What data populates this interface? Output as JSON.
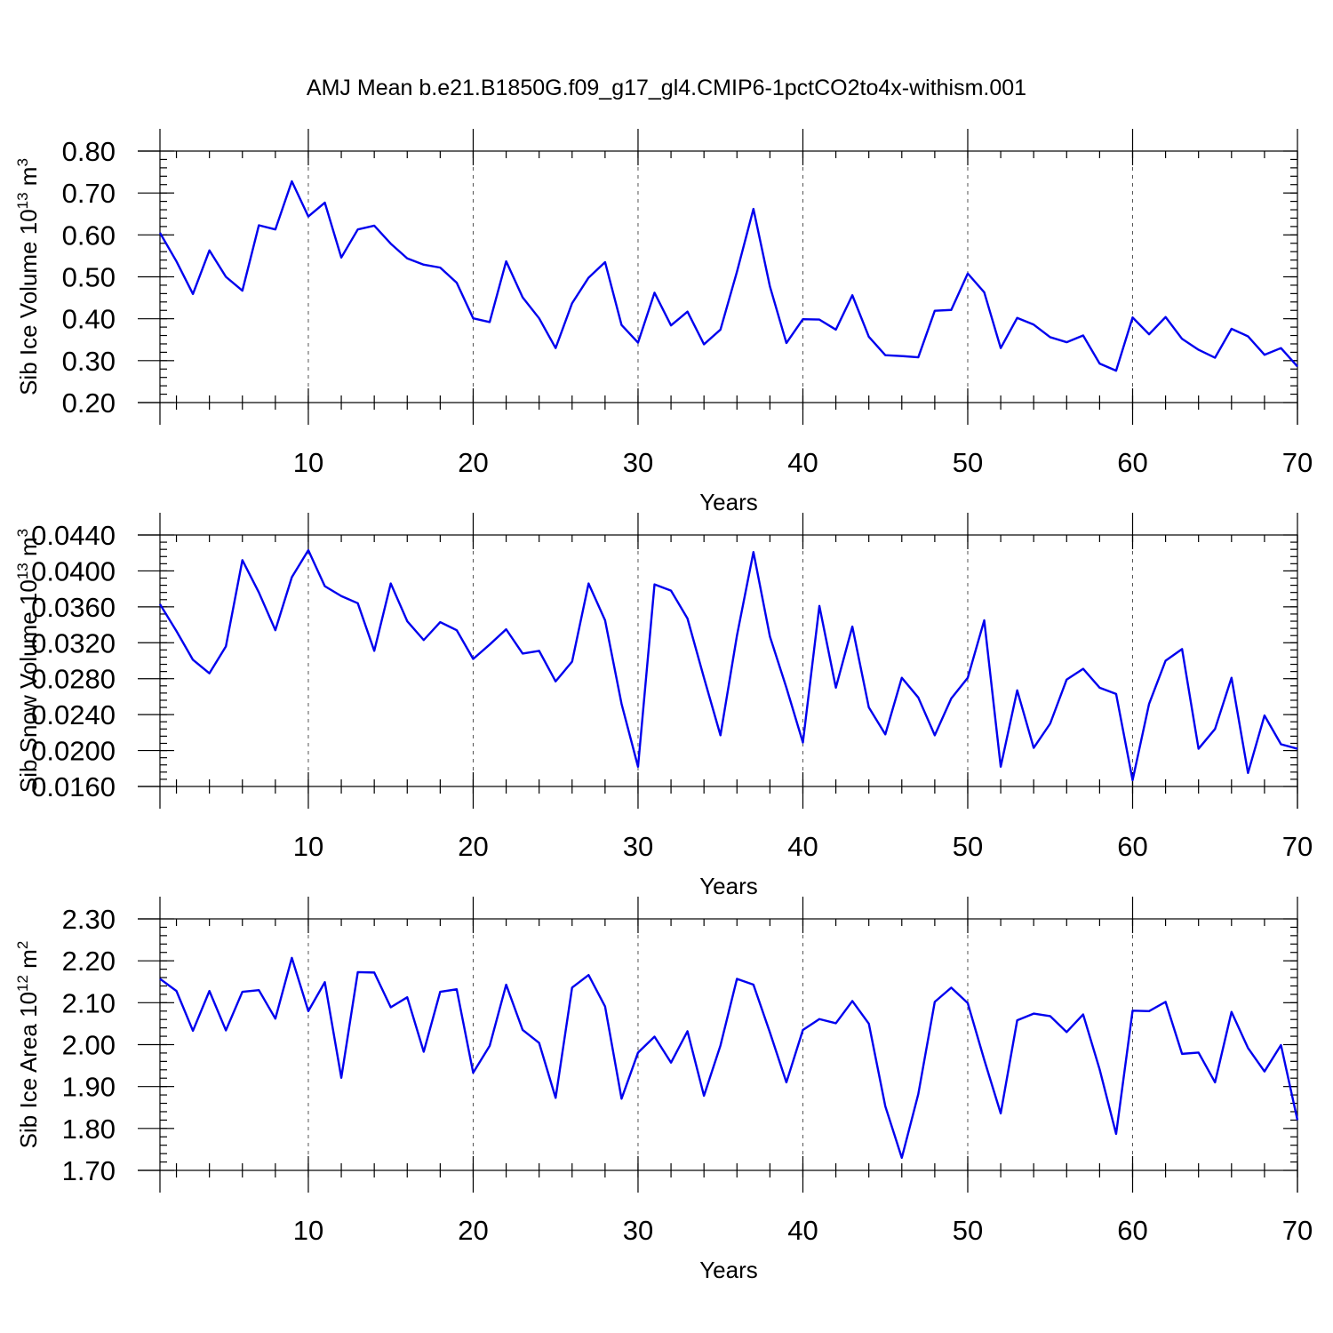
{
  "figure": {
    "title": "AMJ Mean b.e21.B1850G.f09_g17_gl4.CMIP6-1pctCO2to4x-withism.001",
    "line_color": "#0000ee"
  },
  "chart_data": [
    {
      "type": "line",
      "xlabel": "Years",
      "ylabel": "Sib Ice Volume 10",
      "ylabel_exp": "13",
      "ylabel_unit": "m",
      "ylabel_unit_exp": "3",
      "xlim": [
        1,
        70
      ],
      "ylim": [
        0.2,
        0.8
      ],
      "xticks": [
        10,
        20,
        30,
        40,
        50,
        60,
        70
      ],
      "xtick_labels": [
        "10",
        "20",
        "30",
        "40",
        "50",
        "60",
        "70"
      ],
      "yticks": [
        0.2,
        0.3,
        0.4,
        0.5,
        0.6,
        0.7,
        0.8
      ],
      "ytick_labels": [
        "0.20",
        "0.30",
        "0.40",
        "0.50",
        "0.60",
        "0.70",
        "0.80"
      ],
      "x_minor_step": 2,
      "y_minor_step": 0.02,
      "grid_x": [
        10,
        20,
        30,
        40,
        50,
        60
      ],
      "x": [
        1,
        2,
        3,
        4,
        5,
        6,
        7,
        8,
        9,
        10,
        11,
        12,
        13,
        14,
        15,
        16,
        17,
        18,
        19,
        20,
        21,
        22,
        23,
        24,
        25,
        26,
        27,
        28,
        29,
        30,
        31,
        32,
        33,
        34,
        35,
        36,
        37,
        38,
        39,
        40,
        41,
        42,
        43,
        44,
        45,
        46,
        47,
        48,
        49,
        50,
        51,
        52,
        53,
        54,
        55,
        56,
        57,
        58,
        59,
        60,
        61,
        62,
        63,
        64,
        65,
        66,
        67,
        68,
        69,
        70
      ],
      "values": [
        0.605,
        0.537,
        0.459,
        0.563,
        0.5,
        0.467,
        0.623,
        0.613,
        0.728,
        0.644,
        0.677,
        0.546,
        0.613,
        0.622,
        0.579,
        0.544,
        0.529,
        0.522,
        0.486,
        0.401,
        0.392,
        0.537,
        0.451,
        0.401,
        0.33,
        0.437,
        0.498,
        0.535,
        0.385,
        0.343,
        0.462,
        0.384,
        0.417,
        0.339,
        0.374,
        0.512,
        0.662,
        0.477,
        0.342,
        0.399,
        0.398,
        0.374,
        0.456,
        0.357,
        0.313,
        0.311,
        0.308,
        0.419,
        0.421,
        0.508,
        0.463,
        0.33,
        0.402,
        0.386,
        0.356,
        0.344,
        0.36,
        0.293,
        0.276,
        0.403,
        0.363,
        0.404,
        0.352,
        0.326,
        0.307,
        0.376,
        0.358,
        0.314,
        0.33,
        0.286
      ]
    },
    {
      "type": "line",
      "xlabel": "Years",
      "ylabel": "Sib Snow Volume 10",
      "ylabel_exp": "13",
      "ylabel_unit": "m",
      "ylabel_unit_exp": "3",
      "xlim": [
        1,
        70
      ],
      "ylim": [
        0.016,
        0.044
      ],
      "xticks": [
        10,
        20,
        30,
        40,
        50,
        60,
        70
      ],
      "xtick_labels": [
        "10",
        "20",
        "30",
        "40",
        "50",
        "60",
        "70"
      ],
      "yticks": [
        0.016,
        0.02,
        0.024,
        0.028,
        0.032,
        0.036,
        0.04,
        0.044
      ],
      "ytick_labels": [
        "0.0160",
        "0.0200",
        "0.0240",
        "0.0280",
        "0.0320",
        "0.0360",
        "0.0400",
        "0.0440"
      ],
      "x_minor_step": 2,
      "y_minor_step": 0.0008,
      "grid_x": [
        10,
        20,
        30,
        40,
        50,
        60
      ],
      "x": [
        1,
        2,
        3,
        4,
        5,
        6,
        7,
        8,
        9,
        10,
        11,
        12,
        13,
        14,
        15,
        16,
        17,
        18,
        19,
        20,
        21,
        22,
        23,
        24,
        25,
        26,
        27,
        28,
        29,
        30,
        31,
        32,
        33,
        34,
        35,
        36,
        37,
        38,
        39,
        40,
        41,
        42,
        43,
        44,
        45,
        46,
        47,
        48,
        49,
        50,
        51,
        52,
        53,
        54,
        55,
        56,
        57,
        58,
        59,
        60,
        61,
        62,
        63,
        64,
        65,
        66,
        67,
        68,
        69,
        70
      ],
      "values": [
        0.0363,
        0.0333,
        0.0301,
        0.0286,
        0.0316,
        0.0412,
        0.0376,
        0.0334,
        0.0393,
        0.0423,
        0.0383,
        0.0372,
        0.0364,
        0.0311,
        0.0386,
        0.0344,
        0.0323,
        0.0343,
        0.0334,
        0.0302,
        0.0318,
        0.0335,
        0.0308,
        0.0311,
        0.0277,
        0.0299,
        0.0386,
        0.0345,
        0.0252,
        0.0182,
        0.0385,
        0.0378,
        0.0347,
        0.0281,
        0.0217,
        0.0328,
        0.0421,
        0.0327,
        0.027,
        0.0209,
        0.0361,
        0.027,
        0.0338,
        0.0248,
        0.0218,
        0.0281,
        0.0259,
        0.0217,
        0.0258,
        0.0281,
        0.0345,
        0.0182,
        0.0267,
        0.0203,
        0.023,
        0.0279,
        0.0291,
        0.027,
        0.0263,
        0.0167,
        0.0252,
        0.03,
        0.0313,
        0.0202,
        0.0224,
        0.0281,
        0.0175,
        0.0239,
        0.0207,
        0.0202
      ]
    },
    {
      "type": "line",
      "xlabel": "Years",
      "ylabel": "Sib Ice Area 10",
      "ylabel_exp": "12",
      "ylabel_unit": "m",
      "ylabel_unit_exp": "2",
      "xlim": [
        1,
        70
      ],
      "ylim": [
        1.7,
        2.3
      ],
      "xticks": [
        10,
        20,
        30,
        40,
        50,
        60,
        70
      ],
      "xtick_labels": [
        "10",
        "20",
        "30",
        "40",
        "50",
        "60",
        "70"
      ],
      "yticks": [
        1.7,
        1.8,
        1.9,
        2.0,
        2.1,
        2.2,
        2.3
      ],
      "ytick_labels": [
        "1.70",
        "1.80",
        "1.90",
        "2.00",
        "2.10",
        "2.20",
        "2.30"
      ],
      "x_minor_step": 2,
      "y_minor_step": 0.02,
      "grid_x": [
        10,
        20,
        30,
        40,
        50,
        60
      ],
      "x": [
        1,
        2,
        3,
        4,
        5,
        6,
        7,
        8,
        9,
        10,
        11,
        12,
        13,
        14,
        15,
        16,
        17,
        18,
        19,
        20,
        21,
        22,
        23,
        24,
        25,
        26,
        27,
        28,
        29,
        30,
        31,
        32,
        33,
        34,
        35,
        36,
        37,
        38,
        39,
        40,
        41,
        42,
        43,
        44,
        45,
        46,
        47,
        48,
        49,
        50,
        51,
        52,
        53,
        54,
        55,
        56,
        57,
        58,
        59,
        60,
        61,
        62,
        63,
        64,
        65,
        66,
        67,
        68,
        69,
        70
      ],
      "values": [
        2.157,
        2.128,
        2.033,
        2.128,
        2.034,
        2.126,
        2.13,
        2.062,
        2.207,
        2.08,
        2.149,
        1.921,
        2.173,
        2.172,
        2.089,
        2.113,
        1.983,
        2.126,
        2.132,
        1.933,
        1.997,
        2.143,
        2.035,
        2.004,
        1.873,
        2.136,
        2.166,
        2.091,
        1.871,
        1.981,
        2.019,
        1.957,
        2.032,
        1.878,
        1.998,
        2.157,
        2.143,
        2.029,
        1.91,
        2.035,
        2.061,
        2.051,
        2.104,
        2.05,
        1.853,
        1.73,
        1.882,
        2.102,
        2.136,
        2.099,
        1.964,
        1.836,
        2.058,
        2.074,
        2.068,
        2.03,
        2.072,
        1.941,
        1.787,
        2.081,
        2.08,
        2.102,
        1.978,
        1.981,
        1.91,
        2.078,
        1.992,
        1.936,
        1.999,
        1.82
      ]
    }
  ]
}
